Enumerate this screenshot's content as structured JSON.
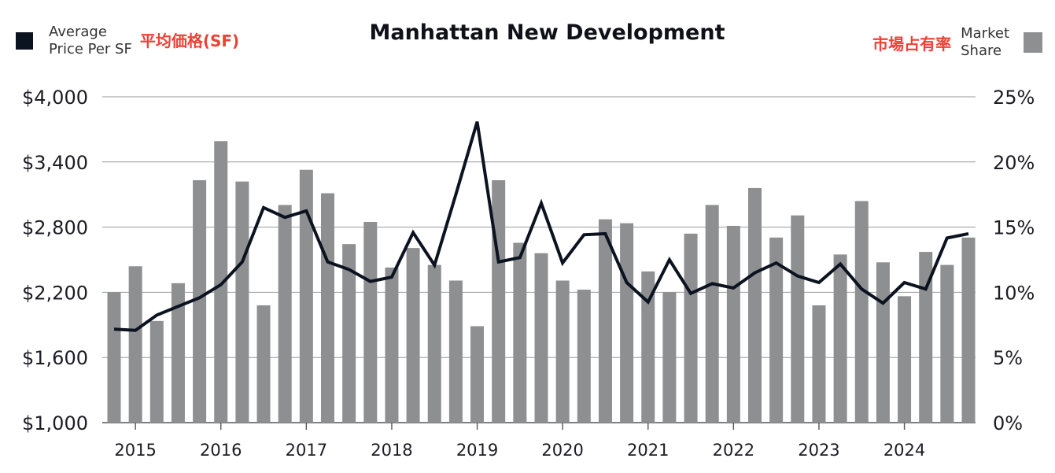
{
  "chart_data": {
    "type": "bar+line",
    "title": "Manhattan New Development",
    "legend": {
      "line": {
        "label_line1": "Average",
        "label_line2": "Price Per SF",
        "label_cjk": "平均価格(SF)",
        "color": "#0c1320"
      },
      "bar": {
        "label_line1": "Market",
        "label_line2": "Share",
        "label_cjk": "市場占有率",
        "color": "#8e8f91"
      }
    },
    "cjk_color": "#ee4236",
    "left_axis": {
      "ticks": [
        "$4,000",
        "$3,400",
        "$2,800",
        "$2,200",
        "$1,600",
        "$1,000"
      ],
      "values": [
        4000,
        3400,
        2800,
        2200,
        1600,
        1000
      ],
      "ylim": [
        1000,
        4000
      ]
    },
    "right_axis": {
      "ticks": [
        "25%",
        "20%",
        "15%",
        "10%",
        "5%",
        "0%"
      ],
      "values": [
        25,
        20,
        15,
        10,
        5,
        0
      ],
      "ylim": [
        0,
        25
      ]
    },
    "x_ticks": [
      "2015",
      "2016",
      "2017",
      "2018",
      "2019",
      "2020",
      "2021",
      "2022",
      "2023",
      "2024"
    ],
    "series": [
      {
        "name": "Market Share",
        "kind": "bar",
        "unit": "%",
        "values": [
          10.0,
          12.0,
          7.8,
          10.7,
          18.6,
          21.6,
          18.5,
          9.0,
          16.7,
          19.4,
          17.6,
          13.7,
          15.4,
          11.9,
          13.4,
          12.1,
          10.9,
          7.4,
          18.6,
          13.8,
          13.0,
          10.9,
          10.2,
          15.6,
          15.3,
          11.6,
          10.0,
          14.5,
          16.7,
          15.1,
          18.0,
          14.2,
          15.9,
          9.0,
          12.9,
          17.0,
          12.3,
          9.7,
          13.1,
          12.1,
          14.2
        ]
      },
      {
        "name": "Average Price Per SF",
        "kind": "line",
        "unit": "$",
        "values": [
          1860,
          1850,
          1990,
          2070,
          2150,
          2270,
          2480,
          2980,
          2890,
          2950,
          2480,
          2410,
          2300,
          2340,
          2750,
          2450,
          3100,
          3770,
          2480,
          2520,
          3020,
          2470,
          2730,
          2740,
          2290,
          2110,
          2500,
          2190,
          2280,
          2240,
          2380,
          2470,
          2350,
          2290,
          2460,
          2230,
          2100,
          2290,
          2230,
          2700,
          2740
        ]
      }
    ]
  }
}
